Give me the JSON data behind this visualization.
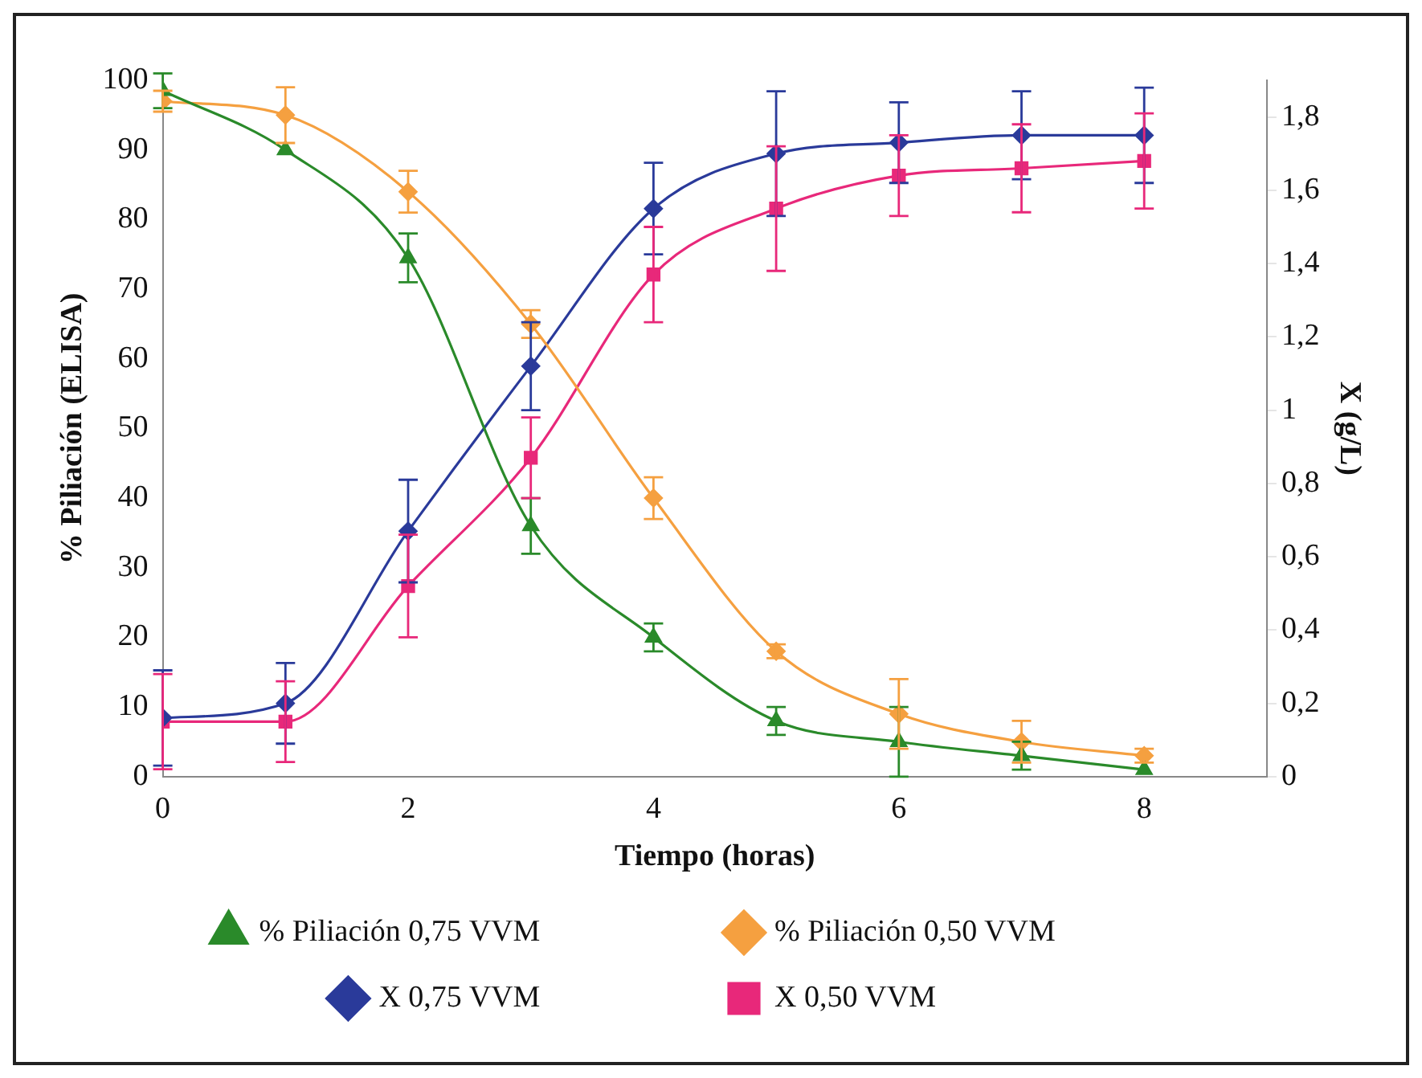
{
  "chart_data": {
    "type": "line",
    "xlabel": "Tiempo (horas)",
    "ylabel": "% Piliación (ELISA)",
    "y2label": "X (g/L)",
    "x": [
      0,
      1,
      2,
      3,
      4,
      5,
      6,
      7,
      8
    ],
    "xlim": [
      0,
      9
    ],
    "xticks": [
      0,
      2,
      4,
      6,
      8
    ],
    "ylim": [
      0,
      100
    ],
    "yticks": [
      0,
      10,
      20,
      30,
      40,
      50,
      60,
      70,
      80,
      90,
      100
    ],
    "y2lim": [
      0,
      1.9
    ],
    "y2ticks": [
      {
        "value": 0,
        "label": "0"
      },
      {
        "value": 0.2,
        "label": "0,2"
      },
      {
        "value": 0.4,
        "label": "0,4"
      },
      {
        "value": 0.6,
        "label": "0,6"
      },
      {
        "value": 0.8,
        "label": "0,8"
      },
      {
        "value": 1,
        "label": "1"
      },
      {
        "value": 1.2,
        "label": "1,2"
      },
      {
        "value": 1.4,
        "label": "1,4"
      },
      {
        "value": 1.6,
        "label": "1,6"
      },
      {
        "value": 1.8,
        "label": "1,8"
      }
    ],
    "grid": false,
    "legend": "bottom",
    "series": [
      {
        "name": "% Piliación 0,75 VVM",
        "color": "#2a8a2a",
        "marker": "triangle",
        "values": [
          98.5,
          90,
          74.5,
          36,
          20,
          8,
          5,
          3,
          1
        ],
        "errors": [
          2.5,
          null,
          3.5,
          4,
          2,
          2,
          5,
          2,
          null
        ]
      },
      {
        "name": "% Piliación 0,50 VVM",
        "color": "#f5a040",
        "marker": "diamond",
        "values": [
          97,
          95,
          84,
          65,
          40,
          18,
          9,
          5,
          3
        ],
        "errors": [
          1.5,
          4,
          3,
          2,
          3,
          1,
          5,
          3,
          1
        ]
      },
      {
        "name": "X 0,75 VVM",
        "color": "#2a3a9a",
        "marker": "diamond",
        "axis": "y2",
        "values": [
          0.16,
          0.2,
          0.67,
          1.12,
          1.55,
          1.7,
          1.73,
          1.75,
          1.75
        ],
        "errors": [
          0.13,
          0.11,
          0.14,
          0.12,
          0.125,
          0.17,
          0.11,
          0.12,
          0.13
        ]
      },
      {
        "name": "X 0,50 VVM",
        "color": "#e8287a",
        "marker": "square",
        "axis": "y2",
        "values": [
          0.15,
          0.15,
          0.52,
          0.87,
          1.37,
          1.55,
          1.64,
          1.66,
          1.68
        ],
        "errors": [
          0.13,
          0.11,
          0.14,
          0.11,
          0.13,
          0.17,
          0.11,
          0.12,
          0.13
        ]
      }
    ]
  }
}
